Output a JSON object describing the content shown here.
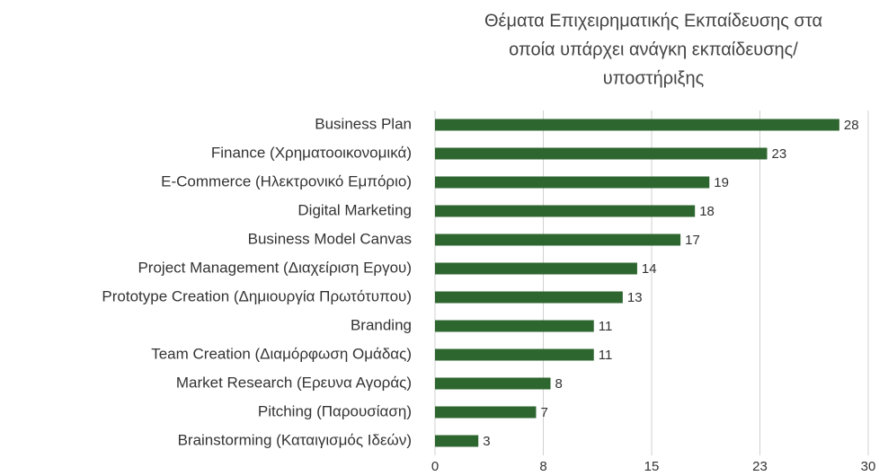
{
  "chart_data": {
    "type": "barh",
    "title": [
      "Θέματα Επιχειρηματικής Εκπαίδευσης στα",
      "οποία υπάρχει ανάγκη εκπαίδευσης/",
      "υποστήριξης"
    ],
    "categories": [
      "Business Plan",
      "Finance (Χρηματοοικονομικά)",
      "E-Commerce (Ηλεκτρονικό Εμπόριο)",
      "Digital Marketing",
      "Business Model Canvas",
      "Project Management (Διαχείριση Εργου)",
      "Prototype Creation (Δημιουργία Πρωτότυπου)",
      "Branding",
      "Team Creation (Διαμόρφωση Ομάδας)",
      "Market Research (Ερευνα Αγοράς)",
      "Pitching (Παρουσίαση)",
      "Brainstorming (Καταιγισμός Ιδεών)"
    ],
    "values": [
      28,
      23,
      19,
      18,
      17,
      14,
      13,
      11,
      11,
      8,
      7,
      3
    ],
    "color": "#2e662f",
    "xlim": [
      0,
      30
    ],
    "xticks": [
      0,
      {
        "value": 7.5,
        "label": "8"
      },
      15,
      {
        "value": 22.5,
        "label": "23"
      },
      30
    ],
    "grid": true
  }
}
